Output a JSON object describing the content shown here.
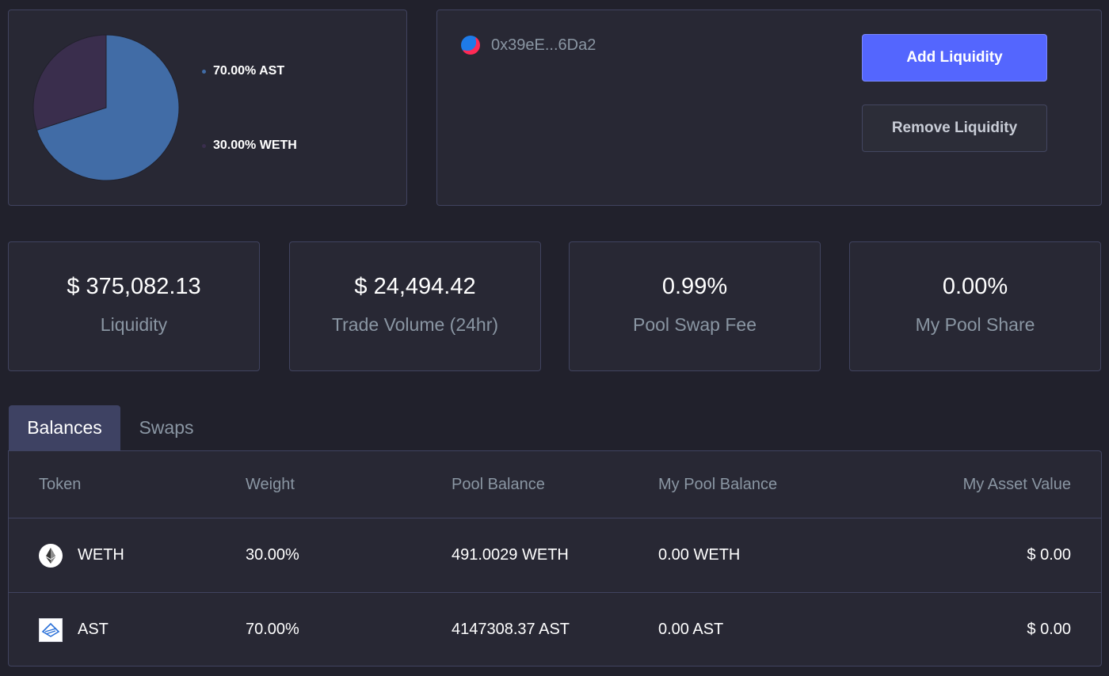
{
  "pie": {
    "legend": [
      {
        "label": "70.00% AST",
        "color": "#416ca6",
        "value": 70
      },
      {
        "label": "30.00% WETH",
        "color": "#3a2e4d",
        "value": 30
      }
    ]
  },
  "wallet": {
    "address": "0x39eE...6Da2",
    "add_label": "Add Liquidity",
    "remove_label": "Remove Liquidity"
  },
  "stats": [
    {
      "value": "$ 375,082.13",
      "label": "Liquidity"
    },
    {
      "value": "$ 24,494.42",
      "label": "Trade Volume (24hr)"
    },
    {
      "value": "0.99%",
      "label": "Pool Swap Fee"
    },
    {
      "value": "0.00%",
      "label": "My Pool Share"
    }
  ],
  "tabs": {
    "balances": "Balances",
    "swaps": "Swaps"
  },
  "table": {
    "headers": [
      "Token",
      "Weight",
      "Pool Balance",
      "My Pool Balance",
      "My Asset Value"
    ],
    "rows": [
      {
        "token": "WETH",
        "icon": "ethereum-icon",
        "weight": "30.00%",
        "pool_balance": "491.0029 WETH",
        "my_pool_balance": "0.00 WETH",
        "my_asset_value": "$ 0.00"
      },
      {
        "token": "AST",
        "icon": "airswap-icon",
        "weight": "70.00%",
        "pool_balance": "4147308.37 AST",
        "my_pool_balance": "0.00 AST",
        "my_asset_value": "$ 0.00"
      }
    ]
  },
  "colors": {
    "accent": "#5466fe",
    "background": "#21212c",
    "panel": "#282834"
  }
}
